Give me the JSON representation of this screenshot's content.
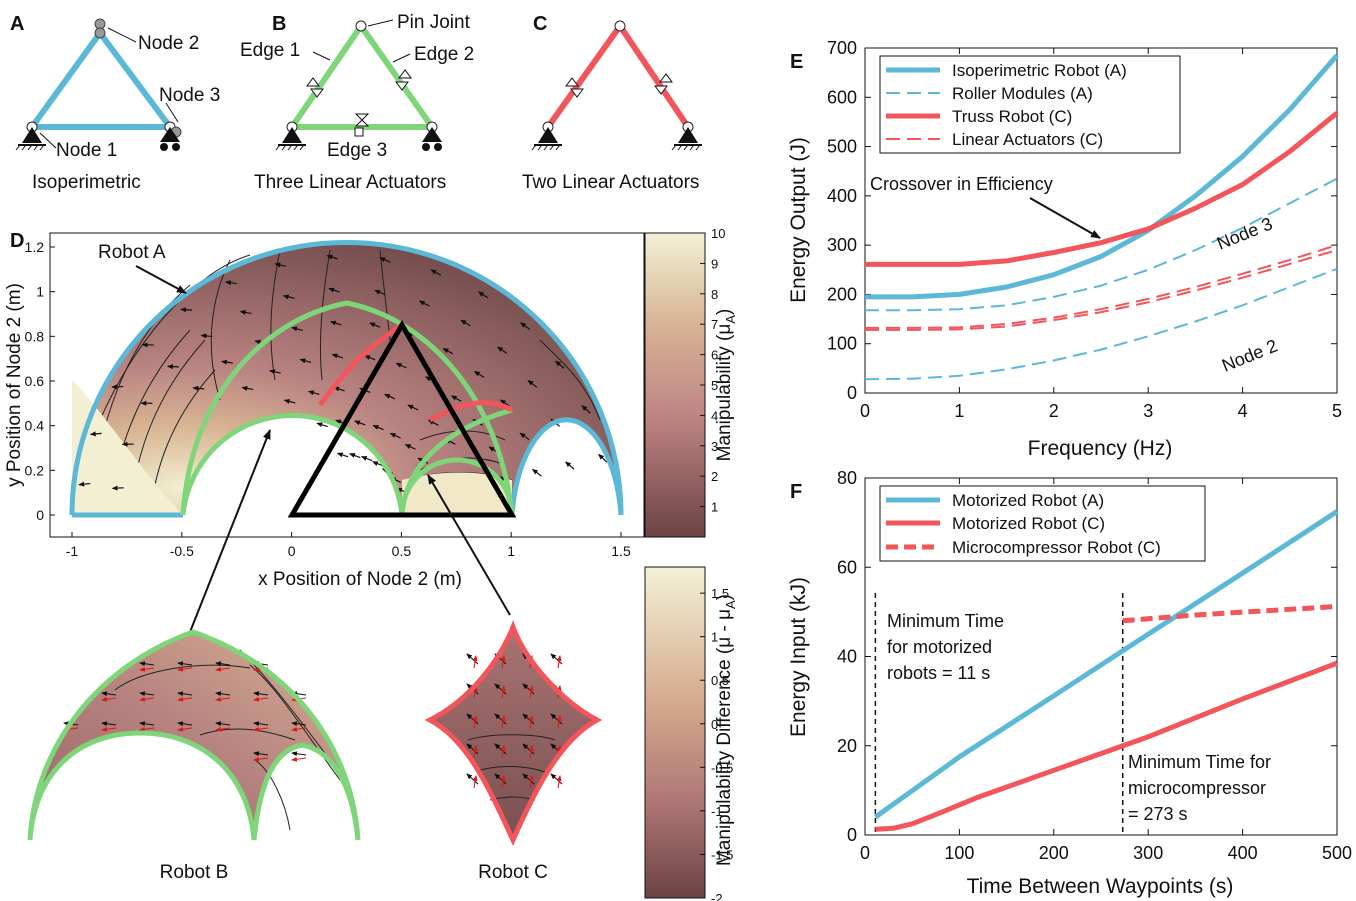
{
  "panels": {
    "A": {
      "letter": "A",
      "caption": "Isoperimetric",
      "labels": {
        "node1": "Node 1",
        "node2": "Node 2",
        "node3": "Node 3"
      },
      "color": "#5bb8d6"
    },
    "B": {
      "letter": "B",
      "caption": "Three Linear Actuators",
      "labels": {
        "pin": "Pin Joint",
        "edge1": "Edge 1",
        "edge2": "Edge 2",
        "edge3": "Edge 3"
      },
      "color": "#7fd67a"
    },
    "C": {
      "letter": "C",
      "caption": "Two Linear Actuators",
      "color": "#f2555a"
    },
    "D": {
      "letter": "D",
      "robot_a_label": "Robot A",
      "robot_b_label": "Robot B",
      "robot_c_label": "Robot C",
      "colorbar1": {
        "label": "Manipulability (μ",
        "sub": "A",
        "end": ")",
        "ticks": [
          "10",
          "9",
          "8",
          "7",
          "6",
          "5",
          "4",
          "3",
          "2",
          "1"
        ]
      },
      "colorbar2": {
        "label": "Manipulability  Difference (μ - μ",
        "sub": "A",
        "end": ")",
        "ticks": [
          "1.5",
          "1",
          "0.5",
          "0",
          "-0.5",
          "-1",
          "-1.5",
          "-2"
        ]
      }
    },
    "E": {
      "letter": "E"
    },
    "F": {
      "letter": "F"
    }
  },
  "colors": {
    "blue": "#5bb8d6",
    "green": "#7fd67a",
    "red": "#f2555a",
    "cmap_light": "#f2f0d2",
    "cmap_mid": "#c78f88",
    "cmap_dark": "#6e4545"
  },
  "chart_data": [
    {
      "id": "D",
      "type": "heatmap",
      "xlabel": "x Position of Node 2 (m)",
      "ylabel": "y Position of Node 2 (m)",
      "xlim": [
        -1,
        1.5
      ],
      "ylim": [
        0,
        1.3
      ],
      "xticks": [
        "-1",
        "-0.5",
        "0",
        "0.5",
        "1",
        "1.5"
      ],
      "yticks": [
        "0",
        "0.2",
        "0.4",
        "0.6",
        "0.8",
        "1",
        "1.2"
      ],
      "colorbar_range": [
        0,
        10
      ],
      "diff_colorbar_range": [
        -2,
        1.8
      ]
    },
    {
      "id": "E",
      "type": "line",
      "xlabel": "Frequency (Hz)",
      "ylabel": "Energy Output (J)",
      "xlim": [
        0,
        5
      ],
      "ylim": [
        0,
        700
      ],
      "xticks": [
        "0",
        "1",
        "2",
        "3",
        "4",
        "5"
      ],
      "yticks": [
        "0",
        "100",
        "200",
        "300",
        "400",
        "500",
        "600",
        "700"
      ],
      "legend_position": "top-left",
      "x": [
        0,
        0.5,
        1,
        1.5,
        2,
        2.5,
        3,
        3.5,
        4,
        4.5,
        5
      ],
      "series": [
        {
          "name": "Isoperimetric Robot (A)",
          "style": "solid-thick",
          "color": "#5bb8d6",
          "values": [
            195,
            195,
            200,
            215,
            240,
            277,
            330,
            400,
            480,
            575,
            685
          ]
        },
        {
          "name": "Roller Modules (A)",
          "style": "dashed",
          "color": "#5bb8d6",
          "values": [
            168,
            168,
            170,
            178,
            195,
            218,
            250,
            290,
            335,
            385,
            435
          ]
        },
        {
          "name": "",
          "style": "dashed",
          "color": "#5bb8d6",
          "values": [
            28,
            29,
            35,
            48,
            66,
            88,
            115,
            145,
            178,
            215,
            252
          ]
        },
        {
          "name": "Truss Robot (C)",
          "style": "solid-thick",
          "color": "#f2555a",
          "values": [
            261,
            261,
            261,
            268,
            285,
            305,
            333,
            375,
            423,
            490,
            568
          ]
        },
        {
          "name": "Linear Actuators (C)",
          "style": "dashed",
          "color": "#f2555a",
          "values": [
            132,
            132,
            133,
            140,
            153,
            170,
            191,
            215,
            242,
            270,
            300
          ]
        },
        {
          "name": "",
          "style": "dashed",
          "color": "#f2555a",
          "values": [
            128,
            128,
            129,
            135,
            148,
            164,
            184,
            208,
            234,
            262,
            290
          ]
        }
      ],
      "annotations": [
        {
          "text": "Crossover in Efficiency",
          "x": 2.75,
          "y": 322
        },
        {
          "text": "Node 3",
          "x": 3.9,
          "y": 370
        },
        {
          "text": "Node 2",
          "x": 3.8,
          "y": 130
        }
      ]
    },
    {
      "id": "F",
      "type": "line",
      "xlabel": "Time Between Waypoints (s)",
      "ylabel": "Energy Input (kJ)",
      "xlim": [
        0,
        500
      ],
      "ylim": [
        0,
        80
      ],
      "xticks": [
        "0",
        "100",
        "200",
        "300",
        "400",
        "500"
      ],
      "yticks": [
        "0",
        "20",
        "40",
        "60",
        "80"
      ],
      "legend_position": "top-left",
      "series": [
        {
          "name": "Motorized Robot (A)",
          "style": "solid",
          "color": "#5bb8d6",
          "x": [
            11,
            100,
            200,
            300,
            400,
            500
          ],
          "values": [
            4,
            17.5,
            31.2,
            45,
            58.7,
            72.5
          ]
        },
        {
          "name": "Motorized Robot (C)",
          "style": "solid",
          "color": "#f2555a",
          "x": [
            11,
            30,
            50,
            80,
            120,
            200,
            300,
            400,
            500
          ],
          "values": [
            1.3,
            1.5,
            2.5,
            5,
            8.5,
            14.5,
            22,
            30.5,
            38.5
          ]
        },
        {
          "name": "Microcompressor Robot (C)",
          "style": "dashed-thick",
          "color": "#f2555a",
          "x": [
            273,
            350,
            420,
            500
          ],
          "values": [
            48,
            49.3,
            50.2,
            51.2
          ]
        }
      ],
      "vlines": [
        11,
        273
      ],
      "annotations": [
        {
          "lines": [
            "Minimum Time",
            "for motorized",
            "robots = 11 s"
          ]
        },
        {
          "lines": [
            "Minimum Time for",
            "microcompressor",
            "= 273 s"
          ]
        }
      ]
    }
  ]
}
